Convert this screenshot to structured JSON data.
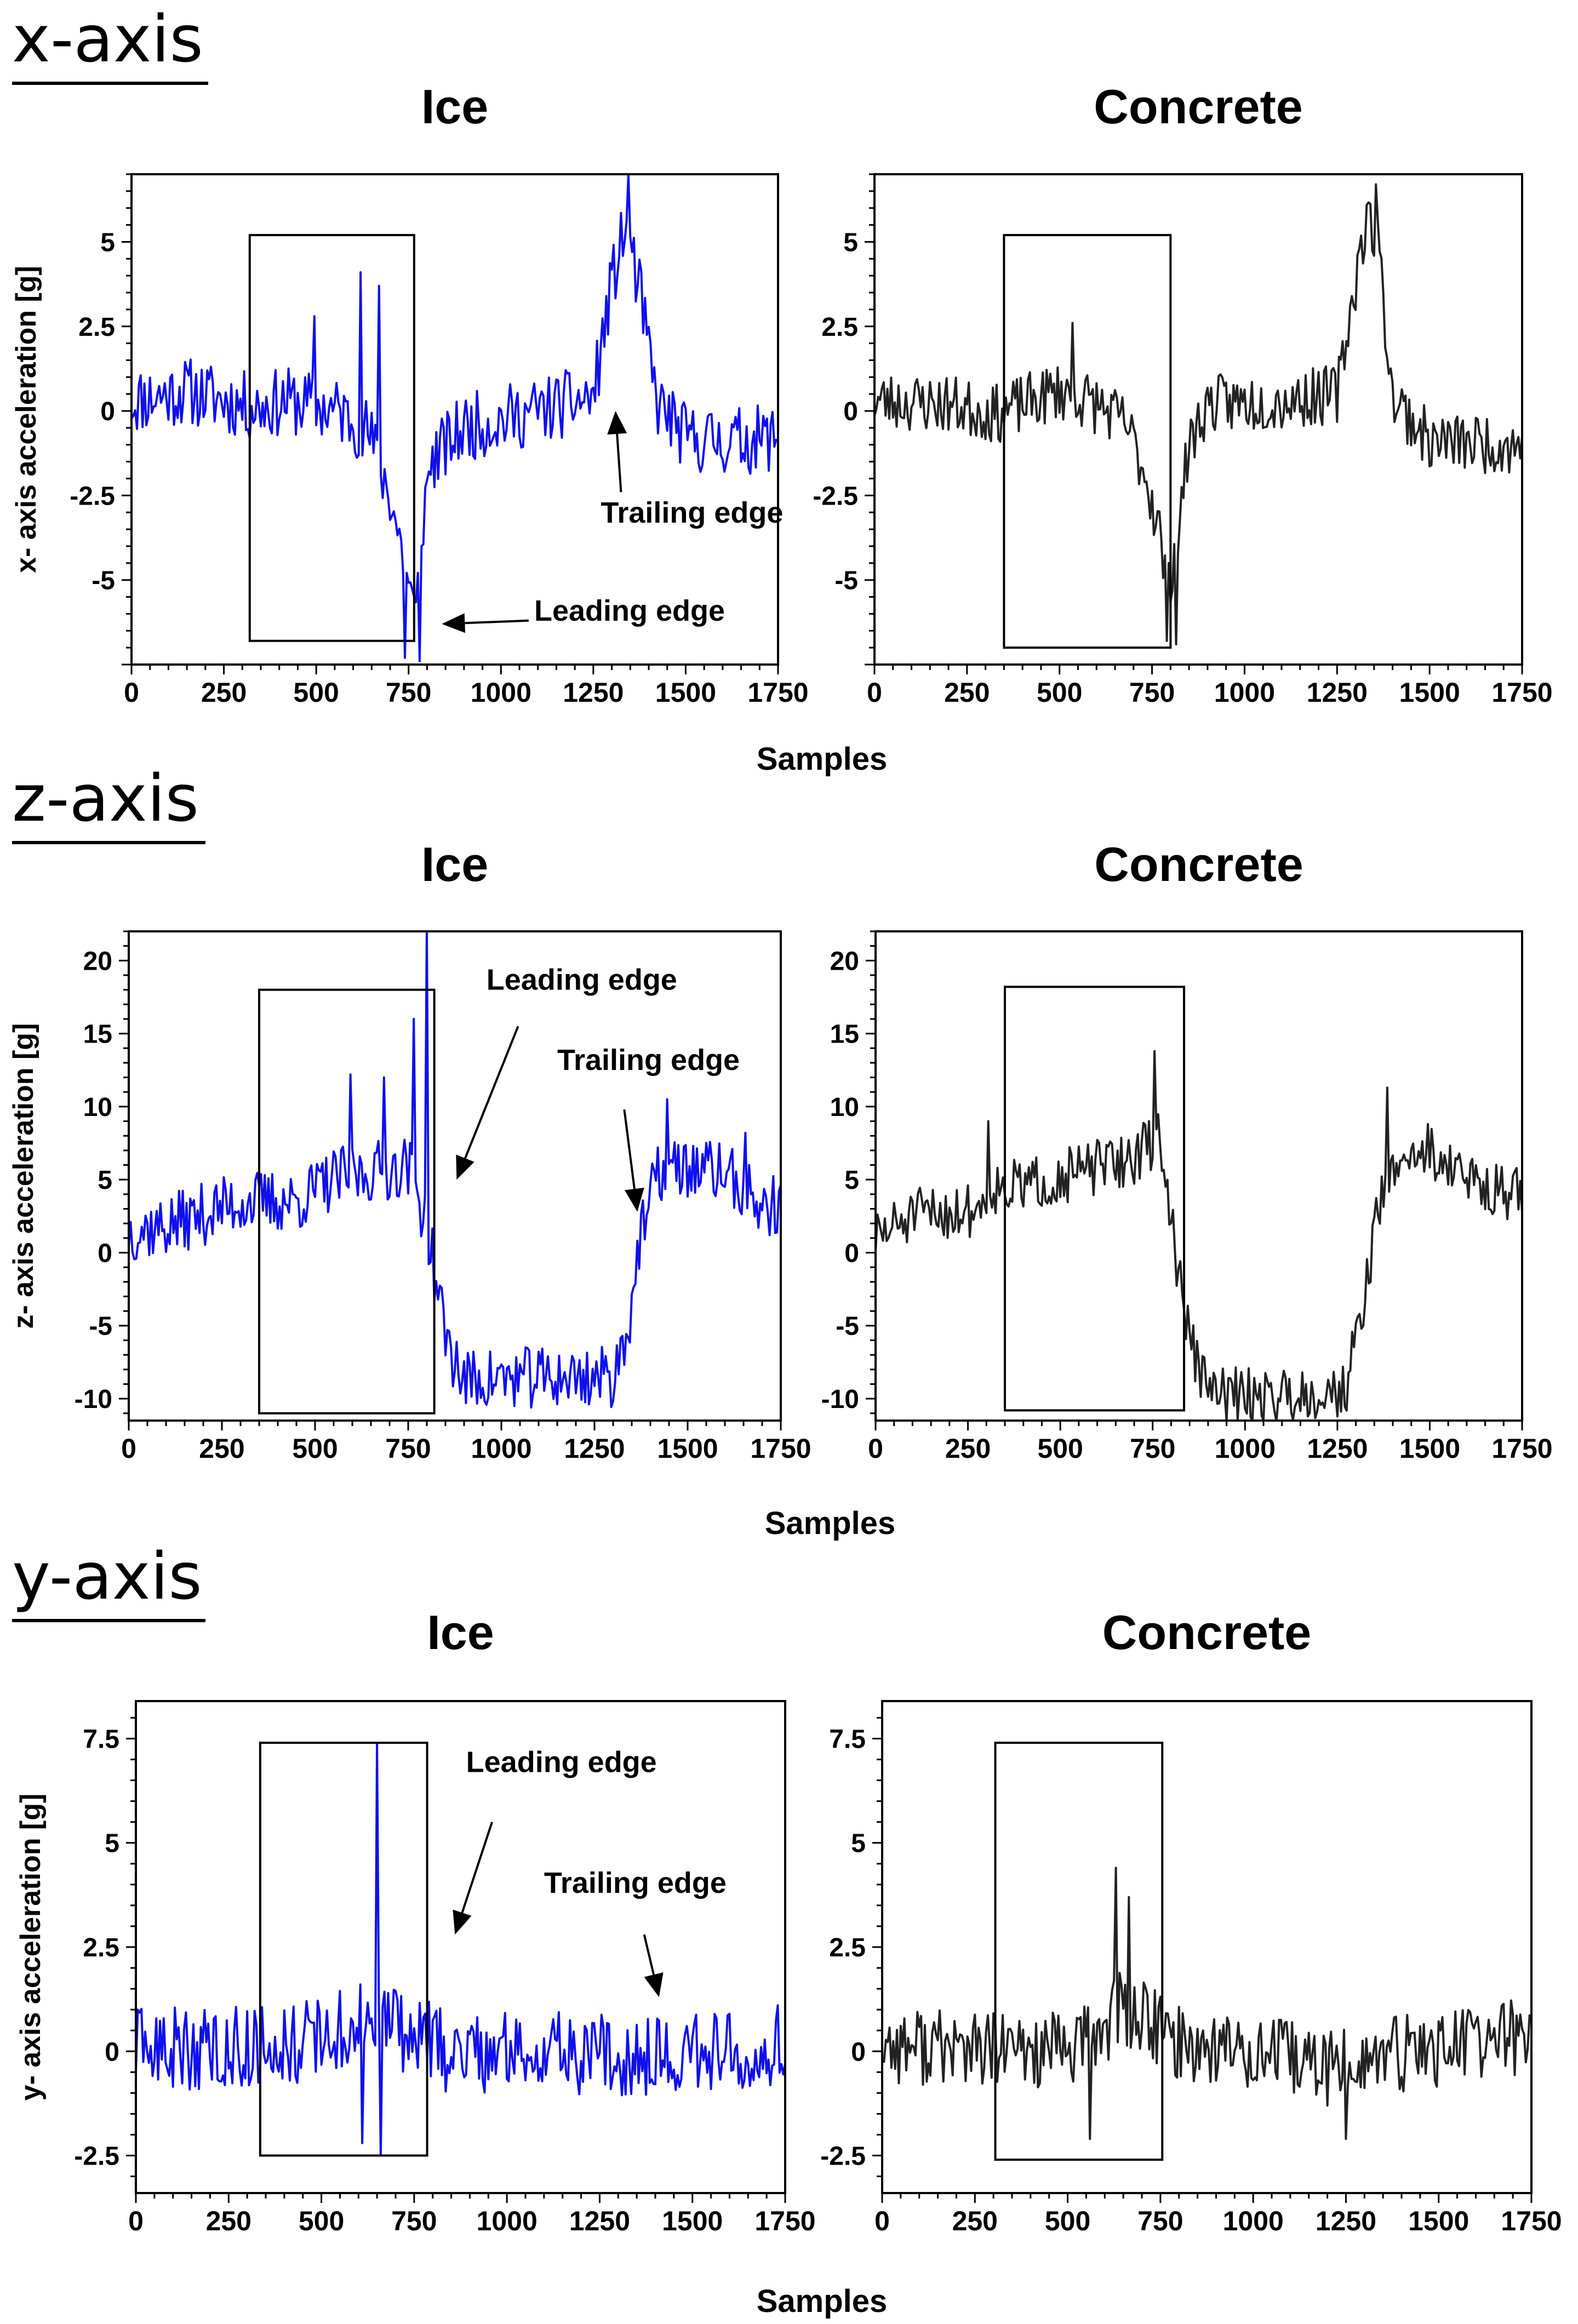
{
  "figure": {
    "sections": [
      {
        "id": "x",
        "label": "x-axis",
        "xlabel": "Samples"
      },
      {
        "id": "z",
        "label": "z-axis",
        "xlabel": "Samples"
      },
      {
        "id": "y",
        "label": "y-axis",
        "xlabel": "Samples"
      }
    ]
  },
  "chart_data": [
    {
      "type": "line",
      "section": "x-axis",
      "title": "Ice",
      "color": "#1010ee",
      "xlabel": "",
      "ylabel": "x- axis acceleration [g]",
      "xlim": [
        0,
        1750
      ],
      "ylim": [
        -7.5,
        7
      ],
      "xticks": [
        0,
        250,
        500,
        750,
        1000,
        1250,
        1500,
        1750
      ],
      "xtick_labels": [
        "0",
        "250",
        "500",
        "750",
        "1000",
        "1250",
        "1500",
        "1750"
      ],
      "yticks": [
        -5,
        -2.5,
        0,
        2.5,
        5
      ],
      "ytick_labels": [
        "-5",
        "-2.5",
        "0",
        "2.5",
        "5"
      ],
      "noise": 0.75,
      "seed": 11,
      "x": [
        0,
        150,
        330,
        420,
        560,
        640,
        700,
        740,
        770,
        785,
        810,
        900,
        1100,
        1250,
        1300,
        1340,
        1380,
        1420,
        1500,
        1600,
        1750
      ],
      "values": [
        0.3,
        0.6,
        0.1,
        0.3,
        0.0,
        -0.6,
        -2.5,
        -4.5,
        -6.2,
        -3.5,
        -1.5,
        -0.5,
        0.0,
        0.4,
        3.8,
        5.5,
        3.2,
        0.3,
        -0.8,
        -0.9,
        -0.8
      ],
      "spikes": [
        {
          "x": 495,
          "y": 2.8
        },
        {
          "x": 618,
          "y": 4.1
        },
        {
          "x": 672,
          "y": 3.7
        },
        {
          "x": 740,
          "y": -7.3
        },
        {
          "x": 778,
          "y": -7.4
        },
        {
          "x": 1345,
          "y": 7.0
        }
      ],
      "box": {
        "x0": 320,
        "x1": 765,
        "y0": -6.8,
        "y1": 5.2
      },
      "annotations": [
        {
          "text": "Trailing edge",
          "x": 1270,
          "y": -3.3,
          "arrow_from": [
            1325,
            -2.4
          ],
          "arrow_to": [
            1310,
            0.0
          ]
        },
        {
          "text": "Leading edge",
          "x": 1090,
          "y": -6.2,
          "arrow_from": [
            1075,
            -6.2
          ],
          "arrow_to": [
            840,
            -6.3
          ]
        }
      ]
    },
    {
      "type": "line",
      "section": "x-axis",
      "title": "Concrete",
      "color": "#222222",
      "xlabel": "",
      "ylabel": "",
      "xlim": [
        0,
        1750
      ],
      "ylim": [
        -7.5,
        7
      ],
      "xticks": [
        0,
        250,
        500,
        750,
        1000,
        1250,
        1500,
        1750
      ],
      "xtick_labels": [
        "0",
        "250",
        "500",
        "750",
        "1000",
        "1250",
        "1500",
        "1750"
      ],
      "yticks": [
        -5,
        -2.5,
        0,
        2.5,
        5
      ],
      "ytick_labels": [
        "-5",
        "-2.5",
        "0",
        "2.5",
        "5"
      ],
      "noise": 0.65,
      "seed": 23,
      "x": [
        0,
        200,
        330,
        500,
        600,
        680,
        730,
        770,
        790,
        820,
        850,
        900,
        1100,
        1250,
        1290,
        1330,
        1360,
        1400,
        1500,
        1750
      ],
      "values": [
        0.3,
        0.2,
        -0.1,
        0.6,
        0.2,
        -0.4,
        -1.8,
        -3.5,
        -5.5,
        -3.5,
        -1.0,
        0.2,
        0.3,
        0.5,
        3.2,
        5.8,
        5.0,
        0.4,
        -0.9,
        -1.0
      ],
      "spikes": [
        {
          "x": 535,
          "y": 2.6
        },
        {
          "x": 790,
          "y": -6.8
        },
        {
          "x": 815,
          "y": -6.9
        },
        {
          "x": 1355,
          "y": 6.7
        }
      ],
      "box": {
        "x0": 350,
        "x1": 800,
        "y0": -7.0,
        "y1": 5.2
      },
      "annotations": []
    },
    {
      "type": "line",
      "section": "z-axis",
      "title": "Ice",
      "color": "#1010ee",
      "xlabel": "",
      "ylabel": "z- axis acceleration [g]",
      "xlim": [
        0,
        1750
      ],
      "ylim": [
        -11.5,
        22
      ],
      "xticks": [
        0,
        250,
        500,
        750,
        1000,
        1250,
        1500,
        1750
      ],
      "xtick_labels": [
        "0",
        "250",
        "500",
        "750",
        "1000",
        "1250",
        "1500",
        "1750"
      ],
      "yticks": [
        -10,
        -5,
        0,
        5,
        10,
        15,
        20
      ],
      "ytick_labels": [
        "-10",
        "-5",
        "0",
        "5",
        "10",
        "15",
        "20"
      ],
      "noise": 1.6,
      "seed": 37,
      "x": [
        0,
        100,
        300,
        450,
        550,
        650,
        750,
        800,
        830,
        860,
        900,
        1000,
        1300,
        1340,
        1370,
        1420,
        1500,
        1600,
        1700,
        1750
      ],
      "values": [
        1.5,
        1.8,
        3.5,
        3.5,
        5.0,
        5.5,
        6.0,
        2.0,
        -3.0,
        -6.5,
        -8.8,
        -8.6,
        -8.5,
        -5.0,
        0.5,
        5.5,
        5.8,
        5.5,
        3.0,
        3.3
      ],
      "spikes": [
        {
          "x": 595,
          "y": 12.2
        },
        {
          "x": 685,
          "y": 12.0
        },
        {
          "x": 765,
          "y": 16.0
        },
        {
          "x": 800,
          "y": 22.5
        },
        {
          "x": 1445,
          "y": 10.5
        },
        {
          "x": 1655,
          "y": 8.2
        }
      ],
      "box": {
        "x0": 350,
        "x1": 820,
        "y0": -11.0,
        "y1": 18.0
      },
      "annotations": [
        {
          "text": "Leading edge",
          "x": 960,
          "y": 18.0,
          "arrow_from": [
            1045,
            15.5
          ],
          "arrow_to": [
            880,
            5.0
          ]
        },
        {
          "text": "Trailing edge",
          "x": 1150,
          "y": 12.5,
          "arrow_from": [
            1330,
            9.8
          ],
          "arrow_to": [
            1365,
            2.8
          ]
        }
      ]
    },
    {
      "type": "line",
      "section": "z-axis",
      "title": "Concrete",
      "color": "#222222",
      "xlabel": "",
      "ylabel": "",
      "xlim": [
        0,
        1750
      ],
      "ylim": [
        -11.5,
        22
      ],
      "xticks": [
        0,
        250,
        500,
        750,
        1000,
        1250,
        1500,
        1750
      ],
      "xtick_labels": [
        "0",
        "250",
        "500",
        "750",
        "1000",
        "1250",
        "1500",
        "1750"
      ],
      "yticks": [
        -10,
        -5,
        0,
        5,
        10,
        15,
        20
      ],
      "ytick_labels": [
        "-10",
        "-5",
        "0",
        "5",
        "10",
        "15",
        "20"
      ],
      "noise": 1.4,
      "seed": 51,
      "x": [
        0,
        100,
        280,
        310,
        400,
        550,
        700,
        770,
        800,
        850,
        900,
        1000,
        1270,
        1310,
        1360,
        1420,
        1500,
        1600,
        1750
      ],
      "values": [
        1.0,
        2.5,
        3.0,
        4.5,
        4.5,
        5.5,
        6.5,
        8.0,
        2.0,
        -6.0,
        -9.5,
        -9.8,
        -9.5,
        -5.0,
        3.0,
        6.5,
        7.0,
        5.0,
        3.8
      ],
      "spikes": [
        {
          "x": 305,
          "y": 9.0
        },
        {
          "x": 755,
          "y": 13.8
        },
        {
          "x": 1385,
          "y": 11.3
        }
      ],
      "box": {
        "x0": 350,
        "x1": 835,
        "y0": -10.8,
        "y1": 18.2
      },
      "annotations": []
    },
    {
      "type": "line",
      "section": "y-axis",
      "title": "Ice",
      "color": "#1010ee",
      "xlabel": "",
      "ylabel": "y- axis acceleration [g]",
      "xlim": [
        0,
        1750
      ],
      "ylim": [
        -3.4,
        8.4
      ],
      "xticks": [
        0,
        250,
        500,
        750,
        1000,
        1250,
        1500,
        1750
      ],
      "xtick_labels": [
        "0",
        "250",
        "500",
        "750",
        "1000",
        "1250",
        "1500",
        "1750"
      ],
      "yticks": [
        -2.5,
        0,
        2.5,
        5,
        7.5
      ],
      "ytick_labels": [
        "-2.5",
        "0",
        "2.5",
        "5",
        "7.5"
      ],
      "noise": 0.75,
      "seed": 63,
      "x": [
        0,
        300,
        500,
        600,
        680,
        750,
        850,
        1100,
        1400,
        1600,
        1750
      ],
      "values": [
        0.0,
        0.1,
        0.3,
        0.6,
        0.8,
        0.3,
        0.0,
        0.0,
        -0.1,
        0.1,
        0.2
      ],
      "spikes": [
        {
          "x": 648,
          "y": 7.4
        },
        {
          "x": 660,
          "y": -2.5
        },
        {
          "x": 612,
          "y": -2.2
        }
      ],
      "box": {
        "x0": 335,
        "x1": 785,
        "y0": -2.5,
        "y1": 7.4
      },
      "annotations": [
        {
          "text": "Leading edge",
          "x": 890,
          "y": 6.7,
          "arrow_from": [
            960,
            5.5
          ],
          "arrow_to": [
            860,
            2.8
          ]
        },
        {
          "text": "Trailing edge",
          "x": 1100,
          "y": 3.8,
          "arrow_from": [
            1370,
            2.8
          ],
          "arrow_to": [
            1410,
            1.3
          ]
        }
      ]
    },
    {
      "type": "line",
      "section": "y-axis",
      "title": "Concrete",
      "color": "#222222",
      "xlabel": "",
      "ylabel": "",
      "xlim": [
        0,
        1750
      ],
      "ylim": [
        -3.4,
        8.4
      ],
      "xticks": [
        0,
        250,
        500,
        750,
        1000,
        1250,
        1500,
        1750
      ],
      "xtick_labels": [
        "0",
        "250",
        "500",
        "750",
        "1000",
        "1250",
        "1500",
        "1750"
      ],
      "yticks": [
        -2.5,
        0,
        2.5,
        5,
        7.5
      ],
      "ytick_labels": [
        "-2.5",
        "0",
        "2.5",
        "5",
        "7.5"
      ],
      "noise": 0.7,
      "seed": 77,
      "x": [
        0,
        300,
        500,
        580,
        640,
        700,
        800,
        1000,
        1200,
        1500,
        1750
      ],
      "values": [
        0.2,
        0.0,
        0.0,
        0.4,
        1.0,
        0.8,
        0.2,
        0.0,
        -0.4,
        0.1,
        0.4
      ],
      "spikes": [
        {
          "x": 630,
          "y": 4.4
        },
        {
          "x": 665,
          "y": 3.7
        },
        {
          "x": 558,
          "y": -2.1
        },
        {
          "x": 1250,
          "y": -2.1
        }
      ],
      "box": {
        "x0": 305,
        "x1": 755,
        "y0": -2.6,
        "y1": 7.4
      },
      "annotations": []
    }
  ]
}
